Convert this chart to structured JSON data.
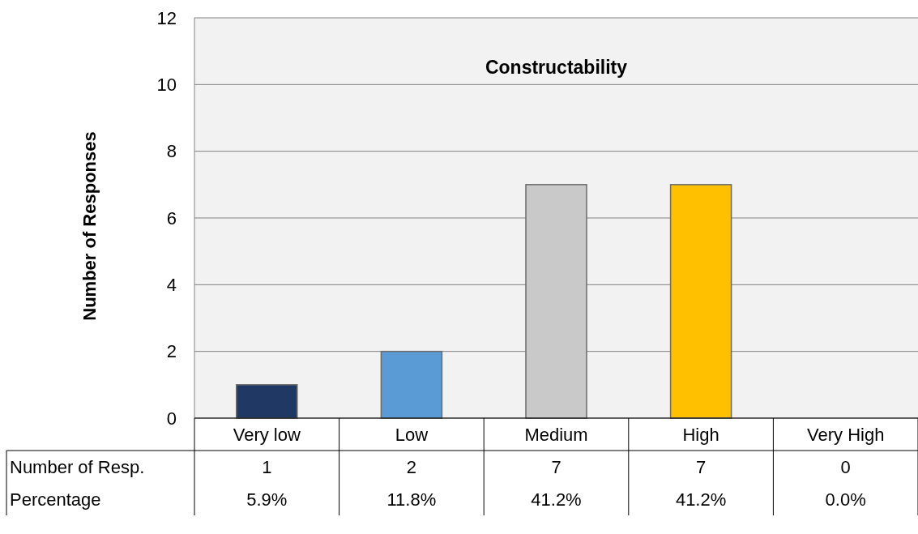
{
  "chart_data": {
    "type": "bar",
    "title": "Constructability",
    "ylabel": "Number  of  Responses",
    "categories": [
      "Very low",
      "Low",
      "Medium",
      "High",
      "Very High"
    ],
    "series": [
      {
        "name": "Number of Resp.",
        "values": [
          1,
          2,
          7,
          7,
          0
        ],
        "colors": [
          "#1f3864",
          "#5b9bd5",
          "#c9c9c9",
          "#ffc000",
          "#7f7f7f"
        ]
      }
    ],
    "ylim": [
      0,
      12
    ],
    "yticks": [
      0,
      2,
      4,
      6,
      8,
      10,
      12
    ],
    "grid": "y",
    "data_labels": true,
    "annotations": [
      "Percentage",
      "5.9%",
      "11.8%",
      "41.2%",
      "41.2%",
      "0.0%"
    ]
  }
}
